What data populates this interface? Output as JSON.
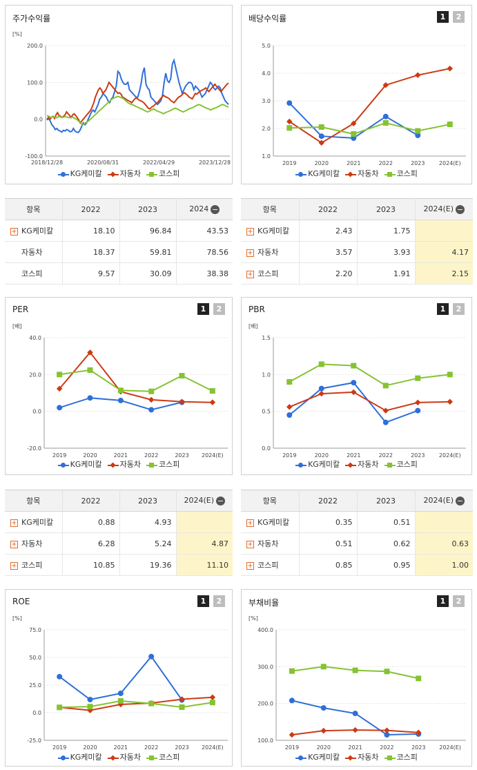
{
  "colors": {
    "kg": "#2f6fd8",
    "auto": "#cc3a14",
    "kospi": "#86c232"
  },
  "legend": {
    "kg": "KG케미칼",
    "auto": "자동차",
    "kospi": "코스피"
  },
  "panels": {
    "stock": {
      "title": "주가수익률"
    },
    "div": {
      "title": "배당수익률",
      "btn1": "1",
      "btn2": "2"
    },
    "per": {
      "title": "PER",
      "btn1": "1",
      "btn2": "2"
    },
    "pbr": {
      "title": "PBR",
      "btn1": "1",
      "btn2": "2"
    },
    "roe": {
      "title": "ROE",
      "btn1": "1",
      "btn2": "2"
    },
    "debt": {
      "title": "부채비율",
      "btn1": "1",
      "btn2": "2"
    }
  },
  "chart_data": [
    {
      "id": "stock",
      "type": "line",
      "ylabel": "[%]",
      "ylim": [
        -100,
        200
      ],
      "yticks": [
        "200.0",
        "100.0",
        "0.0",
        "-100.0"
      ],
      "xticks": [
        "2018/12/28",
        "2020/08/31",
        "2022/04/29",
        "2023/12/28"
      ],
      "series": [
        {
          "name": "KG케미칼",
          "color": "kg",
          "values": [
            -2,
            2,
            -5,
            -15,
            -20,
            -28,
            -25,
            -30,
            -32,
            -35,
            -30,
            -32,
            -28,
            -30,
            -34,
            -33,
            -25,
            -32,
            -35,
            -36,
            -30,
            -20,
            -10,
            -15,
            -10,
            0,
            10,
            20,
            25,
            20,
            30,
            40,
            55,
            60,
            70,
            65,
            60,
            50,
            45,
            55,
            60,
            75,
            90,
            130,
            125,
            110,
            100,
            95,
            95,
            100,
            80,
            75,
            70,
            65,
            60,
            60,
            75,
            95,
            125,
            140,
            95,
            85,
            80,
            60,
            55,
            50,
            45,
            40,
            45,
            50,
            65,
            100,
            125,
            105,
            100,
            110,
            150,
            160,
            140,
            120,
            100,
            85,
            70,
            80,
            90,
            95,
            100,
            100,
            95,
            80,
            90,
            85,
            80,
            70,
            60,
            65,
            70,
            80,
            90,
            100,
            95,
            85,
            80,
            85,
            90,
            85,
            70,
            60,
            50,
            45,
            40
          ]
        },
        {
          "name": "자동차",
          "color": "auto",
          "values": [
            0,
            5,
            0,
            5,
            8,
            2,
            12,
            18,
            10,
            8,
            5,
            8,
            12,
            20,
            15,
            10,
            5,
            12,
            15,
            10,
            5,
            -2,
            -10,
            -5,
            0,
            5,
            10,
            15,
            20,
            25,
            35,
            45,
            60,
            70,
            80,
            85,
            80,
            70,
            75,
            80,
            90,
            100,
            95,
            90,
            85,
            80,
            75,
            70,
            72,
            68,
            60,
            58,
            55,
            52,
            50,
            48,
            45,
            50,
            55,
            58,
            55,
            52,
            50,
            48,
            45,
            40,
            35,
            30,
            28,
            32,
            35,
            38,
            42,
            45,
            50,
            55,
            60,
            65,
            62,
            60,
            58,
            55,
            50,
            48,
            45,
            50,
            55,
            60,
            62,
            65,
            70,
            72,
            68,
            65,
            60,
            58,
            55,
            62,
            70,
            68,
            72,
            75,
            78,
            80,
            82,
            85,
            80,
            75,
            80,
            85,
            90,
            95,
            90,
            85,
            80,
            75,
            80,
            85,
            90,
            95,
            98
          ]
        },
        {
          "name": "코스피",
          "color": "kospi",
          "values": [
            10,
            8,
            5,
            7,
            6,
            4,
            8,
            6,
            5,
            7,
            6,
            5,
            4,
            6,
            3,
            0,
            -5,
            -10,
            -15,
            -12,
            -8,
            -5,
            0,
            5,
            10,
            15,
            20,
            25,
            30,
            35,
            40,
            45,
            50,
            55,
            58,
            60,
            62,
            60,
            58,
            55,
            50,
            45,
            42,
            40,
            38,
            35,
            33,
            30,
            28,
            25,
            22,
            20,
            22,
            25,
            28,
            25,
            22,
            20,
            18,
            15,
            18,
            20,
            22,
            25,
            28,
            30,
            28,
            25,
            22,
            20,
            22,
            25,
            28,
            30,
            32,
            35,
            38,
            40,
            38,
            35,
            32,
            30,
            28,
            25,
            28,
            30,
            32,
            35,
            38,
            40,
            38,
            35,
            33
          ]
        }
      ]
    },
    {
      "id": "div",
      "type": "line",
      "ylabel": "",
      "ylim": [
        1,
        5
      ],
      "yticks": [
        "5.0",
        "4.0",
        "3.0",
        "2.0",
        "1.0"
      ],
      "categories": [
        "2019",
        "2020",
        "2021",
        "2022",
        "2023",
        "2024(E)"
      ],
      "series": [
        {
          "name": "KG케미칼",
          "color": "kg",
          "values": [
            2.92,
            1.72,
            1.65,
            2.43,
            1.75,
            null
          ]
        },
        {
          "name": "자동차",
          "color": "auto",
          "values": [
            2.25,
            1.48,
            2.18,
            3.57,
            3.93,
            4.17
          ]
        },
        {
          "name": "코스피",
          "color": "kospi",
          "values": [
            2.02,
            2.05,
            1.8,
            2.2,
            1.91,
            2.15
          ]
        }
      ]
    },
    {
      "id": "per",
      "type": "line",
      "ylabel": "[배]",
      "ylim": [
        -20,
        40
      ],
      "yticks": [
        "40.0",
        "20.0",
        "0.0",
        "-20.0"
      ],
      "categories": [
        "2019",
        "2020",
        "2021",
        "2022",
        "2023",
        "2024(E)"
      ],
      "series": [
        {
          "name": "KG케미칼",
          "color": "kg",
          "values": [
            2.0,
            7.3,
            5.9,
            0.88,
            4.93,
            null
          ]
        },
        {
          "name": "자동차",
          "color": "auto",
          "values": [
            12.3,
            32.0,
            10.7,
            6.28,
            5.24,
            4.87
          ]
        },
        {
          "name": "코스피",
          "color": "kospi",
          "values": [
            20.0,
            22.4,
            11.4,
            10.85,
            19.36,
            11.1
          ]
        }
      ]
    },
    {
      "id": "pbr",
      "type": "line",
      "ylabel": "[배]",
      "ylim": [
        0,
        1.5
      ],
      "yticks": [
        "1.5",
        "1.0",
        "0.5",
        "0.0"
      ],
      "categories": [
        "2019",
        "2020",
        "2021",
        "2022",
        "2023",
        "2024(E)"
      ],
      "series": [
        {
          "name": "KG케미칼",
          "color": "kg",
          "values": [
            0.45,
            0.81,
            0.89,
            0.35,
            0.51,
            null
          ]
        },
        {
          "name": "자동차",
          "color": "auto",
          "values": [
            0.56,
            0.74,
            0.76,
            0.51,
            0.62,
            0.63
          ]
        },
        {
          "name": "코스피",
          "color": "kospi",
          "values": [
            0.9,
            1.14,
            1.12,
            0.85,
            0.95,
            1.0
          ]
        }
      ]
    },
    {
      "id": "roe",
      "type": "line",
      "ylabel": "[%]",
      "ylim": [
        -25,
        75
      ],
      "yticks": [
        "75.0",
        "50.0",
        "25.0",
        "0.0",
        "-25.0"
      ],
      "categories": [
        "2019",
        "2020",
        "2021",
        "2022",
        "2023",
        "2024(E)"
      ],
      "series": [
        {
          "name": "KG케미칼",
          "color": "kg",
          "values": [
            32.6,
            11.9,
            17.5,
            50.8,
            11.5,
            null
          ]
        },
        {
          "name": "자동차",
          "color": "auto",
          "values": [
            4.8,
            2.1,
            7.5,
            8.7,
            12.2,
            13.9
          ]
        },
        {
          "name": "코스피",
          "color": "kospi",
          "values": [
            4.8,
            5.5,
            10.6,
            8.3,
            5.0,
            9.2
          ]
        }
      ]
    },
    {
      "id": "debt",
      "type": "line",
      "ylabel": "[%]",
      "ylim": [
        100,
        400
      ],
      "yticks": [
        "400.0",
        "300.0",
        "200.0",
        "100.0"
      ],
      "categories": [
        "2019",
        "2020",
        "2021",
        "2022",
        "2023",
        "2024(E)"
      ],
      "series": [
        {
          "name": "KG케미칼",
          "color": "kg",
          "values": [
            208,
            188,
            173,
            115,
            117,
            null
          ]
        },
        {
          "name": "자동차",
          "color": "auto",
          "values": [
            115,
            126,
            128,
            127,
            121,
            null
          ]
        },
        {
          "name": "코스피",
          "color": "kospi",
          "values": [
            288,
            300,
            290,
            287,
            268,
            null
          ]
        }
      ]
    }
  ],
  "tables": {
    "stock": {
      "headers": [
        "항목",
        "2022",
        "2023",
        "2024"
      ],
      "rows": [
        {
          "name": "KG케미칼",
          "plus": true,
          "v": [
            "18.10",
            "96.84",
            "43.53"
          ]
        },
        {
          "name": "자동차",
          "plus": false,
          "v": [
            "18.37",
            "59.81",
            "78.56"
          ]
        },
        {
          "name": "코스피",
          "plus": false,
          "v": [
            "9.57",
            "30.09",
            "38.38"
          ]
        }
      ]
    },
    "div": {
      "headers": [
        "항목",
        "2022",
        "2023",
        "2024(E)"
      ],
      "rows": [
        {
          "name": "KG케미칼",
          "plus": true,
          "v": [
            "2.43",
            "1.75",
            ""
          ]
        },
        {
          "name": "자동차",
          "plus": true,
          "v": [
            "3.57",
            "3.93",
            "4.17"
          ]
        },
        {
          "name": "코스피",
          "plus": true,
          "v": [
            "2.20",
            "1.91",
            "2.15"
          ]
        }
      ]
    },
    "per": {
      "headers": [
        "항목",
        "2022",
        "2023",
        "2024(E)"
      ],
      "rows": [
        {
          "name": "KG케미칼",
          "plus": true,
          "v": [
            "0.88",
            "4.93",
            ""
          ]
        },
        {
          "name": "자동차",
          "plus": true,
          "v": [
            "6.28",
            "5.24",
            "4.87"
          ]
        },
        {
          "name": "코스피",
          "plus": true,
          "v": [
            "10.85",
            "19.36",
            "11.10"
          ]
        }
      ]
    },
    "pbr": {
      "headers": [
        "항목",
        "2022",
        "2023",
        "2024(E)"
      ],
      "rows": [
        {
          "name": "KG케미칼",
          "plus": true,
          "v": [
            "0.35",
            "0.51",
            ""
          ]
        },
        {
          "name": "자동차",
          "plus": true,
          "v": [
            "0.51",
            "0.62",
            "0.63"
          ]
        },
        {
          "name": "코스피",
          "plus": true,
          "v": [
            "0.85",
            "0.95",
            "1.00"
          ]
        }
      ]
    }
  }
}
